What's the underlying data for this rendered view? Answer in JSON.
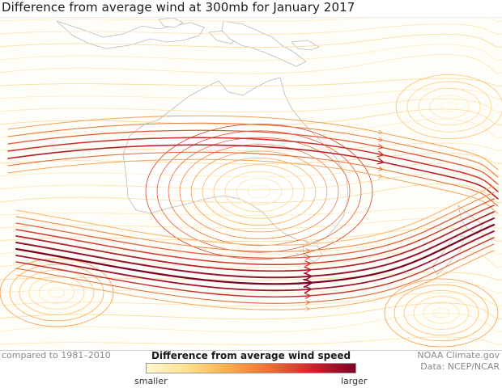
{
  "title": "Difference from average wind at 300mb for January 2017",
  "baseline_note": "compared to 1981–2010",
  "legend": {
    "title": "Difference from average wind speed",
    "low_label": "smaller",
    "high_label": "larger",
    "colors": [
      "#fff8d0",
      "#fde08a",
      "#f9a94b",
      "#ef6a32",
      "#d1202b",
      "#7d0025"
    ]
  },
  "credits": {
    "source": "NOAA Climate.gov",
    "data": "Data: NCEP/NCAR"
  },
  "map_features": [
    "Australia",
    "New Guinea",
    "New Zealand",
    "Tasmania",
    "Indonesia"
  ]
}
